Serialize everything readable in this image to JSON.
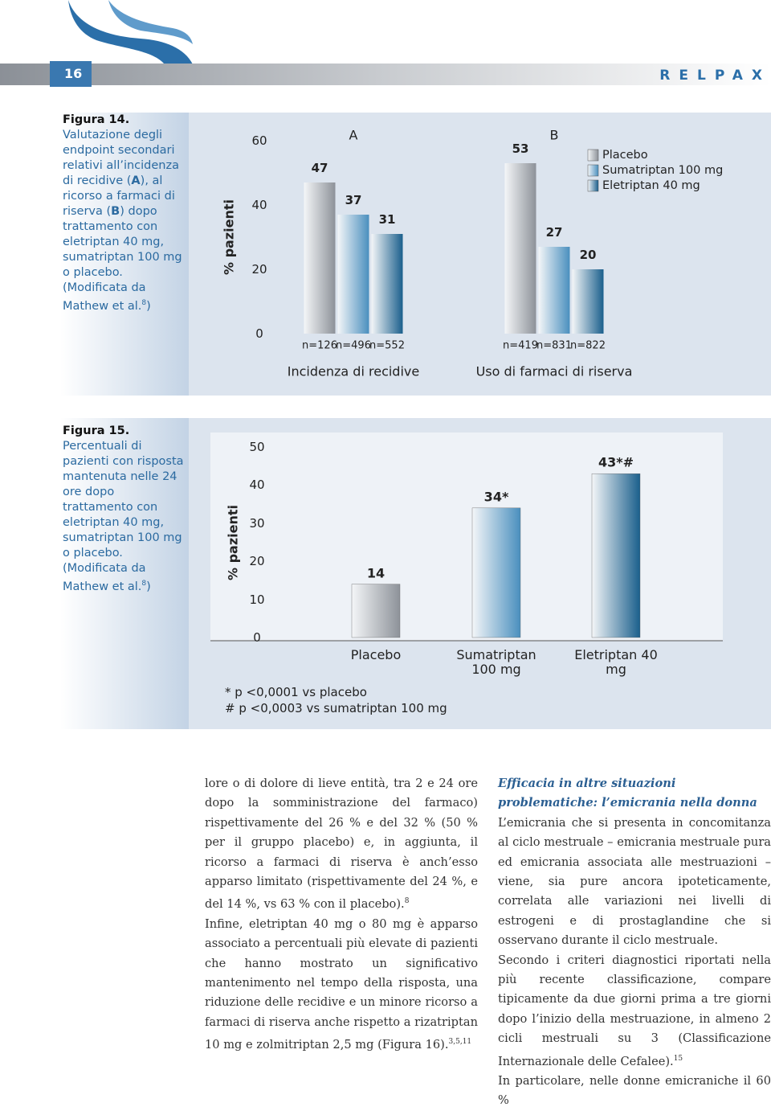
{
  "header": {
    "page": "16",
    "brand": "RELPAX"
  },
  "figures": [
    {
      "label": "Figura 14.",
      "caption": [
        "Valutazione degli endpoint secondari relativi all’incidenza di recidive (",
        "A",
        "), al ricorso a farmaci di riserva (",
        "B",
        ") dopo trattamento con eletriptan 40 mg, sumatriptan 100 mg o placebo. (Modificata da Mathew et al.",
        "8",
        ")"
      ],
      "chart": {
        "type": "grouped_bar",
        "ylabel": "% pazienti",
        "ylim": [
          0,
          60
        ],
        "yticks": [
          0,
          20,
          40,
          60
        ],
        "categories": [
          "Incidenza di recidive",
          "Uso di farmaci di riserva"
        ],
        "group_labels": [
          "A",
          "B"
        ],
        "legend": "top right",
        "series": [
          {
            "name": "Placebo",
            "color": "#8d9299",
            "values": [
              47,
              53
            ],
            "n": [
              "n=126",
              "n=419"
            ]
          },
          {
            "name": "Sumatriptan 100 mg",
            "color": "#4a8fbe",
            "values": [
              37,
              27
            ],
            "n": [
              "n=496",
              "n=831"
            ]
          },
          {
            "name": "Eletriptan 40 mg",
            "color": "#1a5f8c",
            "values": [
              31,
              20
            ],
            "n": [
              "n=552",
              "n=822"
            ]
          }
        ]
      }
    },
    {
      "label": "Figura 15.",
      "caption": [
        "Percentuali di pazienti con risposta mantenuta nelle 24 ore dopo trattamento con eletriptan 40 mg, sumatriptan 100 mg o placebo. (Modificata da Mathew et al.",
        "8",
        ")"
      ],
      "chart": {
        "type": "bar",
        "ylabel": "% pazienti",
        "ylim": [
          0,
          50
        ],
        "yticks": [
          0,
          10,
          20,
          30,
          40,
          50
        ],
        "categories": [
          "Placebo",
          "Sumatriptan 100 mg",
          "Eletriptan 40 mg"
        ],
        "colors": [
          "#8d9299",
          "#4a8fbe",
          "#1a5f8c"
        ],
        "values": [
          14,
          34,
          43
        ],
        "value_labels": [
          "14",
          "34*",
          "43*#"
        ],
        "footnotes": [
          "* p <0,0001 vs placebo",
          "# p <0,0003 vs sumatriptan 100 mg"
        ]
      }
    }
  ],
  "body": {
    "left": [
      {
        "text": "lore o di dolore di lieve entità, tra 2 e 24 ore dopo la somministrazione del farmaco) rispettivamente del 26 % e del 32 % (50 % per il gruppo placebo) e, in aggiunta, il ricorso a farmaci di riserva è anch’esso apparso limitato (rispettivamente del 24 %, e del 14 %, vs 63 % con il placebo).",
        "ref": "8"
      },
      {
        "text": "Infine, eletriptan 40 mg o 80 mg è apparso associato a percentuali più elevate di pazienti che hanno mostrato un significativo mantenimento nel tempo della risposta, una riduzione delle recidive e un minore ricorso a farmaci di riserva anche rispetto a rizatriptan 10 mg e zolmitriptan 2,5 mg (Figura 16).",
        "ref": "3,5,11"
      }
    ],
    "right": {
      "heading": "Efficacia in altre situazioni problematiche: l’emicrania nella donna",
      "paragraphs": [
        {
          "text": "L’emicrania che si presenta in concomitanza al ciclo mestruale – emicrania mestruale pura ed emicrania associata alle mestruazioni – viene, sia pure ancora ipoteticamente, correlata alle variazioni nei livelli di estrogeni e di prostaglandine che si osservano durante il ciclo mestruale."
        },
        {
          "text": "Secondo i criteri diagnostici riportati nella più recente classificazione, compare tipicamente da due giorni prima a tre giorni dopo l’inizio della mestruazione, in almeno 2 cicli mestruali su 3 (Classificazione Internazionale delle Cefalee).",
          "ref": "15"
        },
        {
          "text": "In particolare, nelle donne emicraniche il 60 %"
        }
      ]
    }
  }
}
